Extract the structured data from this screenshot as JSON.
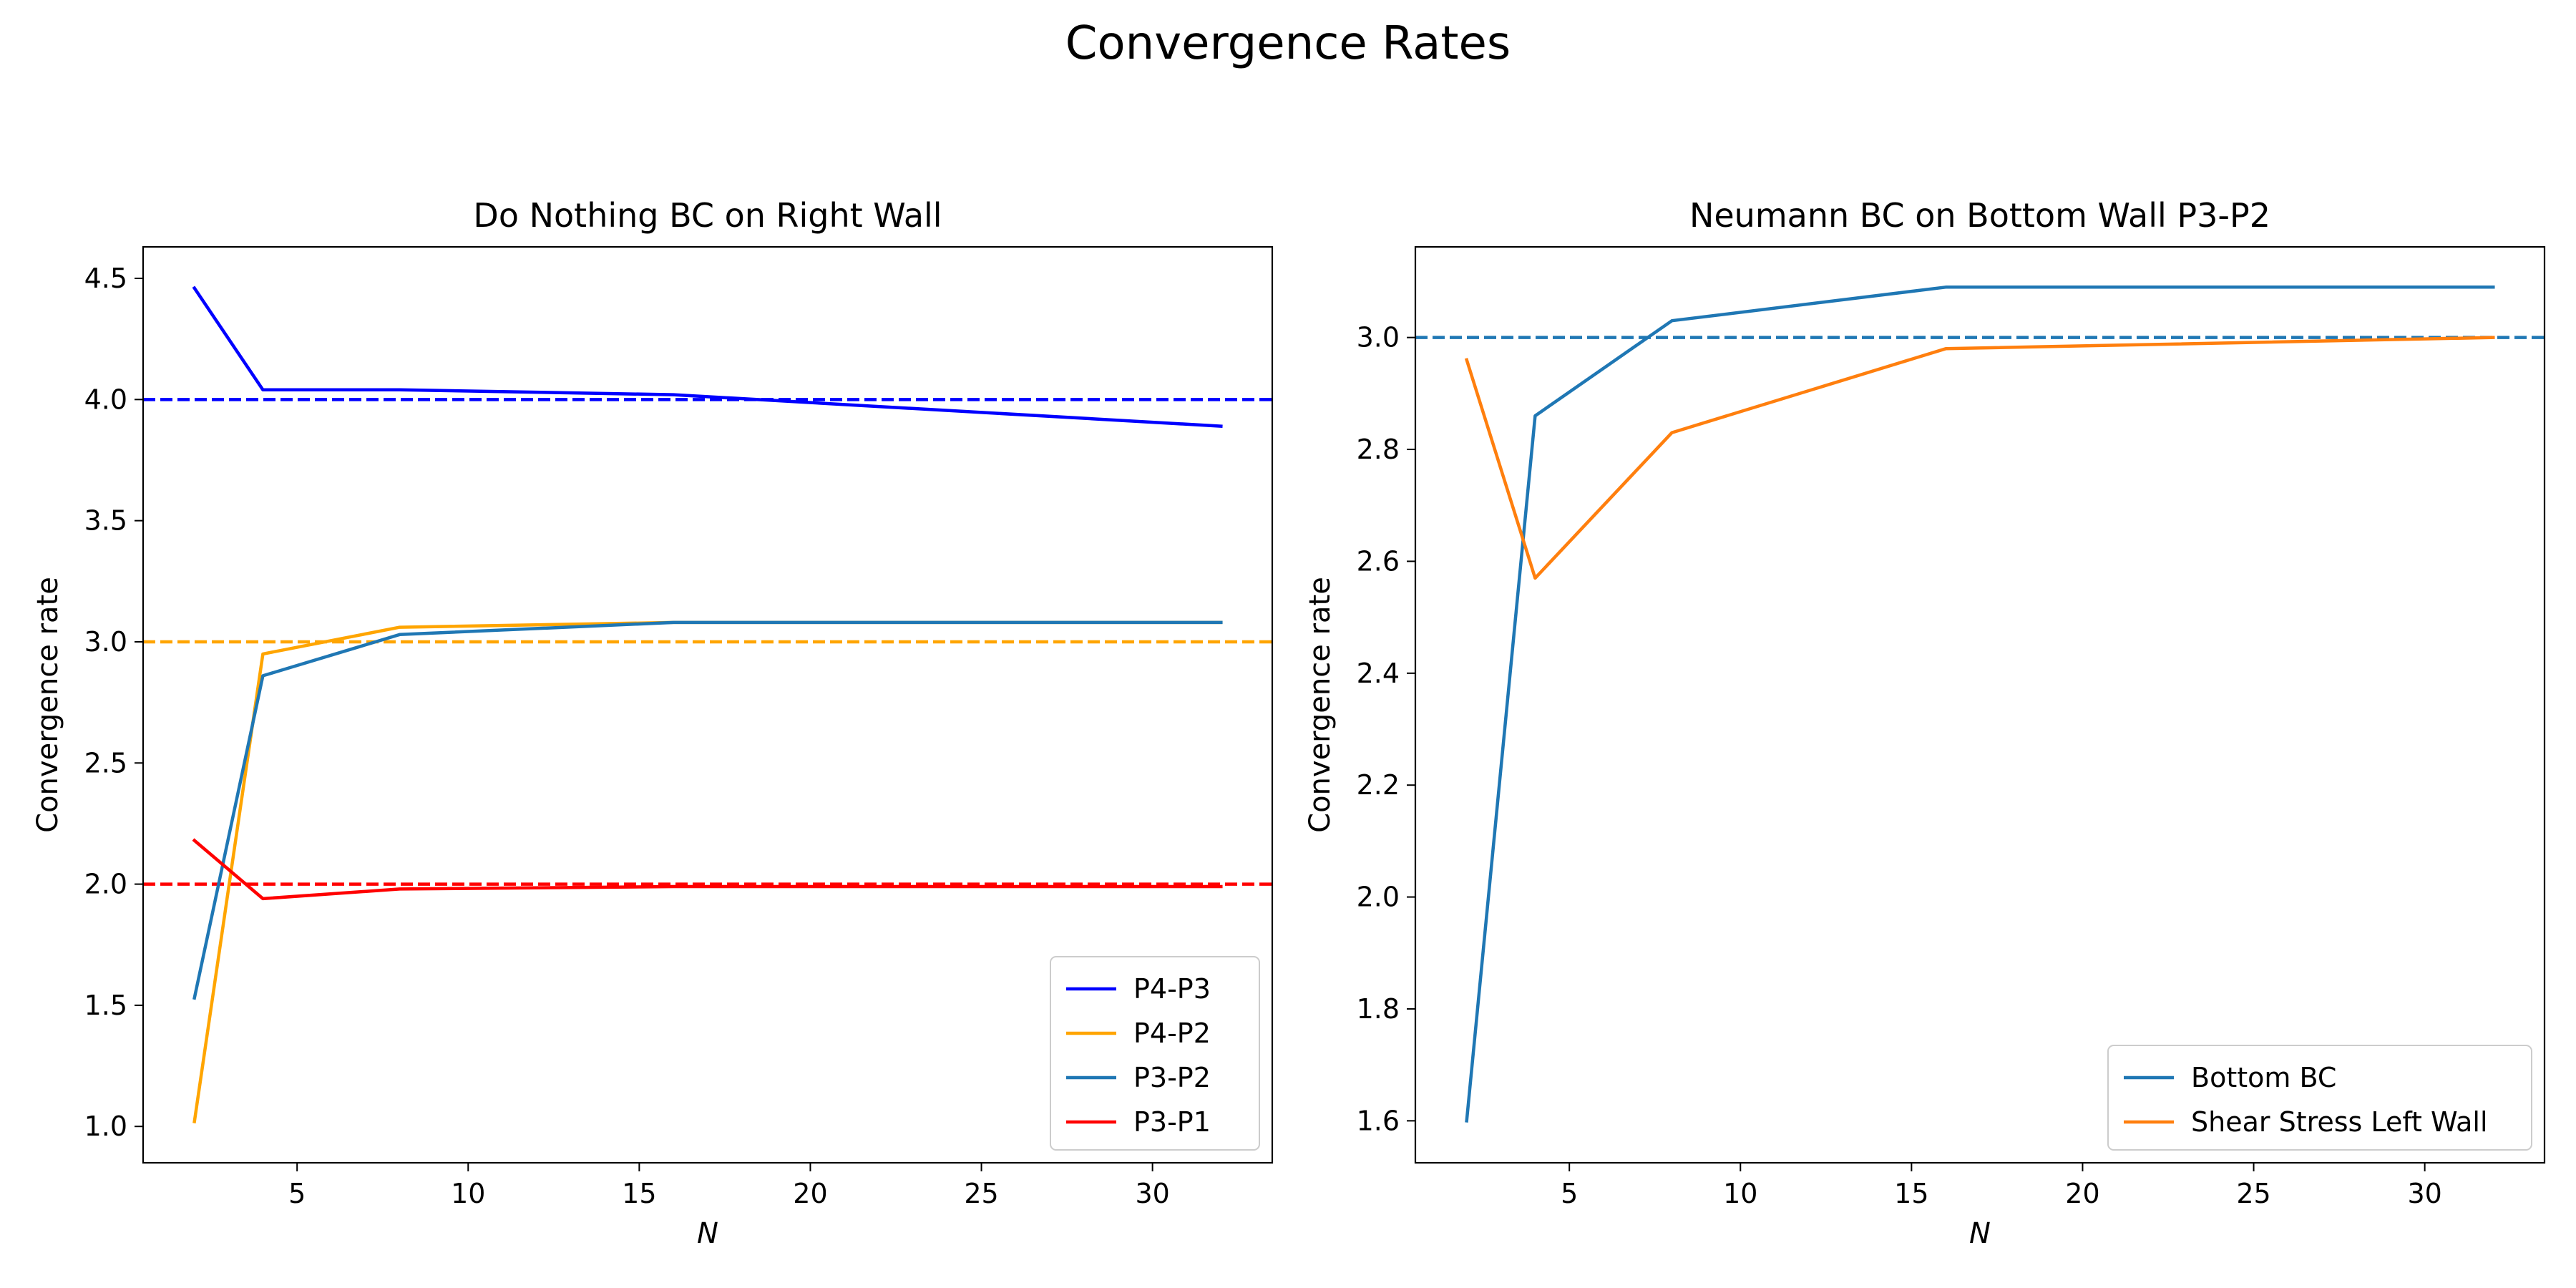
{
  "figure": {
    "suptitle": "Convergence Rates",
    "axes_color": "#000000",
    "background": "#ffffff"
  },
  "chart_data": [
    {
      "type": "line",
      "title": "Do Nothing BC on Right Wall",
      "xlabel": "N",
      "ylabel": "Convergence rate",
      "xlim": [
        0.5,
        33.5
      ],
      "ylim": [
        0.85,
        4.63
      ],
      "xticks": [
        5,
        10,
        15,
        20,
        25,
        30
      ],
      "yticks": [
        1.0,
        1.5,
        2.0,
        2.5,
        3.0,
        3.5,
        4.0,
        4.5
      ],
      "ytick_labels": [
        "1.0",
        "1.5",
        "2.0",
        "2.5",
        "3.0",
        "3.5",
        "4.0",
        "4.5"
      ],
      "grid": false,
      "legend_position": "lower-right",
      "x": [
        2,
        4,
        8,
        16,
        32
      ],
      "series": [
        {
          "name": "P4-P3",
          "color": "#0000ff",
          "values": [
            4.46,
            4.04,
            4.04,
            4.02,
            3.89
          ]
        },
        {
          "name": "P4-P2",
          "color": "#ffa500",
          "values": [
            1.02,
            2.95,
            3.06,
            3.08,
            3.08
          ]
        },
        {
          "name": "P3-P2",
          "color": "#1f77b4",
          "values": [
            1.53,
            2.86,
            3.03,
            3.08,
            3.08
          ]
        },
        {
          "name": "P3-P1",
          "color": "#ff0000",
          "values": [
            2.18,
            1.94,
            1.98,
            1.99,
            1.99
          ]
        }
      ],
      "reference_lines": [
        {
          "y": 4.0,
          "color": "#0000ff",
          "style": "dashed"
        },
        {
          "y": 3.0,
          "color": "#ffa500",
          "style": "dashed"
        },
        {
          "y": 2.0,
          "color": "#ff0000",
          "style": "dashed"
        }
      ]
    },
    {
      "type": "line",
      "title": "Neumann BC on Bottom Wall P3-P2",
      "xlabel": "N",
      "ylabel": "Convergence rate",
      "xlim": [
        0.5,
        33.5
      ],
      "ylim": [
        1.525,
        3.162
      ],
      "xticks": [
        5,
        10,
        15,
        20,
        25,
        30
      ],
      "yticks": [
        1.6,
        1.8,
        2.0,
        2.2,
        2.4,
        2.6,
        2.8,
        3.0
      ],
      "ytick_labels": [
        "1.6",
        "1.8",
        "2.0",
        "2.2",
        "2.4",
        "2.6",
        "2.8",
        "3.0"
      ],
      "grid": false,
      "legend_position": "lower-right",
      "x": [
        2,
        4,
        8,
        16,
        32
      ],
      "series": [
        {
          "name": "Bottom BC",
          "color": "#1f77b4",
          "values": [
            1.6,
            2.86,
            3.03,
            3.09,
            3.09
          ]
        },
        {
          "name": "Shear Stress Left Wall",
          "color": "#ff7f0e",
          "values": [
            2.96,
            2.57,
            2.83,
            2.98,
            3.0
          ]
        }
      ],
      "reference_lines": [
        {
          "y": 3.0,
          "color": "#1f77b4",
          "style": "dashed"
        }
      ]
    }
  ]
}
